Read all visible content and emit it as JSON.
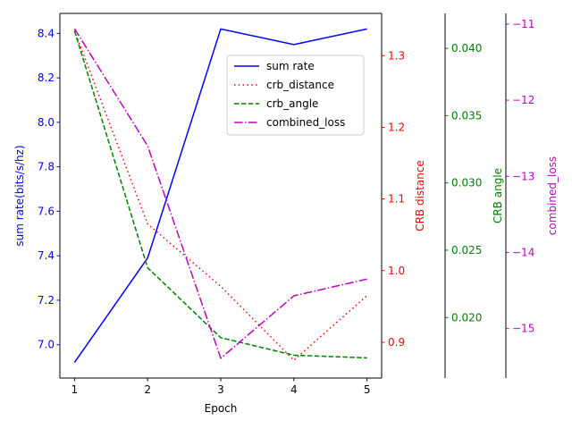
{
  "chart_data": {
    "type": "line",
    "title": "",
    "xlabel": "Epoch",
    "x": [
      1,
      2,
      3,
      4,
      5
    ],
    "xlim": [
      0.8,
      5.2
    ],
    "x_ticks": [
      1,
      2,
      3,
      4,
      5
    ],
    "grid": false,
    "legend_position": "upper-right",
    "axes": [
      {
        "id": "sum_rate",
        "label": "sum rate(bits/s/hz)",
        "side": "left",
        "color": "#0000ff",
        "ylim": [
          6.85,
          8.49
        ],
        "ticks": [
          "7.0",
          "7.2",
          "7.4",
          "7.6",
          "7.8",
          "8.0",
          "8.2",
          "8.4"
        ]
      },
      {
        "id": "crb_distance",
        "label": "CRB distance",
        "side": "right",
        "color": "#ff0000",
        "ylim": [
          0.85,
          1.359
        ],
        "ticks": [
          "0.9",
          "1.0",
          "1.1",
          "1.2",
          "1.3"
        ]
      },
      {
        "id": "crb_angle",
        "label": "CRB angle",
        "side": "right",
        "color": "#008000",
        "ylim": [
          0.0155,
          0.0426
        ],
        "ticks": [
          "0.020",
          "0.025",
          "0.030",
          "0.035",
          "0.040"
        ]
      },
      {
        "id": "combined_loss",
        "label": "combined_loss",
        "side": "right",
        "color": "#bf00bf",
        "ylim": [
          -15.65,
          -10.86
        ],
        "ticks": [
          "−11",
          "−12",
          "−13",
          "−14",
          "−15"
        ]
      }
    ],
    "series": [
      {
        "name": "sum rate",
        "axis": "sum_rate",
        "color": "#0000ff",
        "style": "solid",
        "values": [
          6.92,
          7.39,
          8.42,
          8.35,
          8.42
        ]
      },
      {
        "name": "crb_distance",
        "axis": "crb_distance",
        "color": "#ff0000",
        "style": "dotted",
        "values": [
          1.335,
          1.065,
          0.978,
          0.875,
          0.965
        ]
      },
      {
        "name": "crb_angle",
        "axis": "crb_angle",
        "color": "#008000",
        "style": "dashed",
        "values": [
          0.0413,
          0.0237,
          0.0185,
          0.0172,
          0.017
        ]
      },
      {
        "name": "combined_loss",
        "axis": "combined_loss",
        "color": "#bf00bf",
        "style": "dashdot",
        "values": [
          -11.06,
          -12.6,
          -15.39,
          -14.57,
          -14.35
        ]
      }
    ]
  }
}
